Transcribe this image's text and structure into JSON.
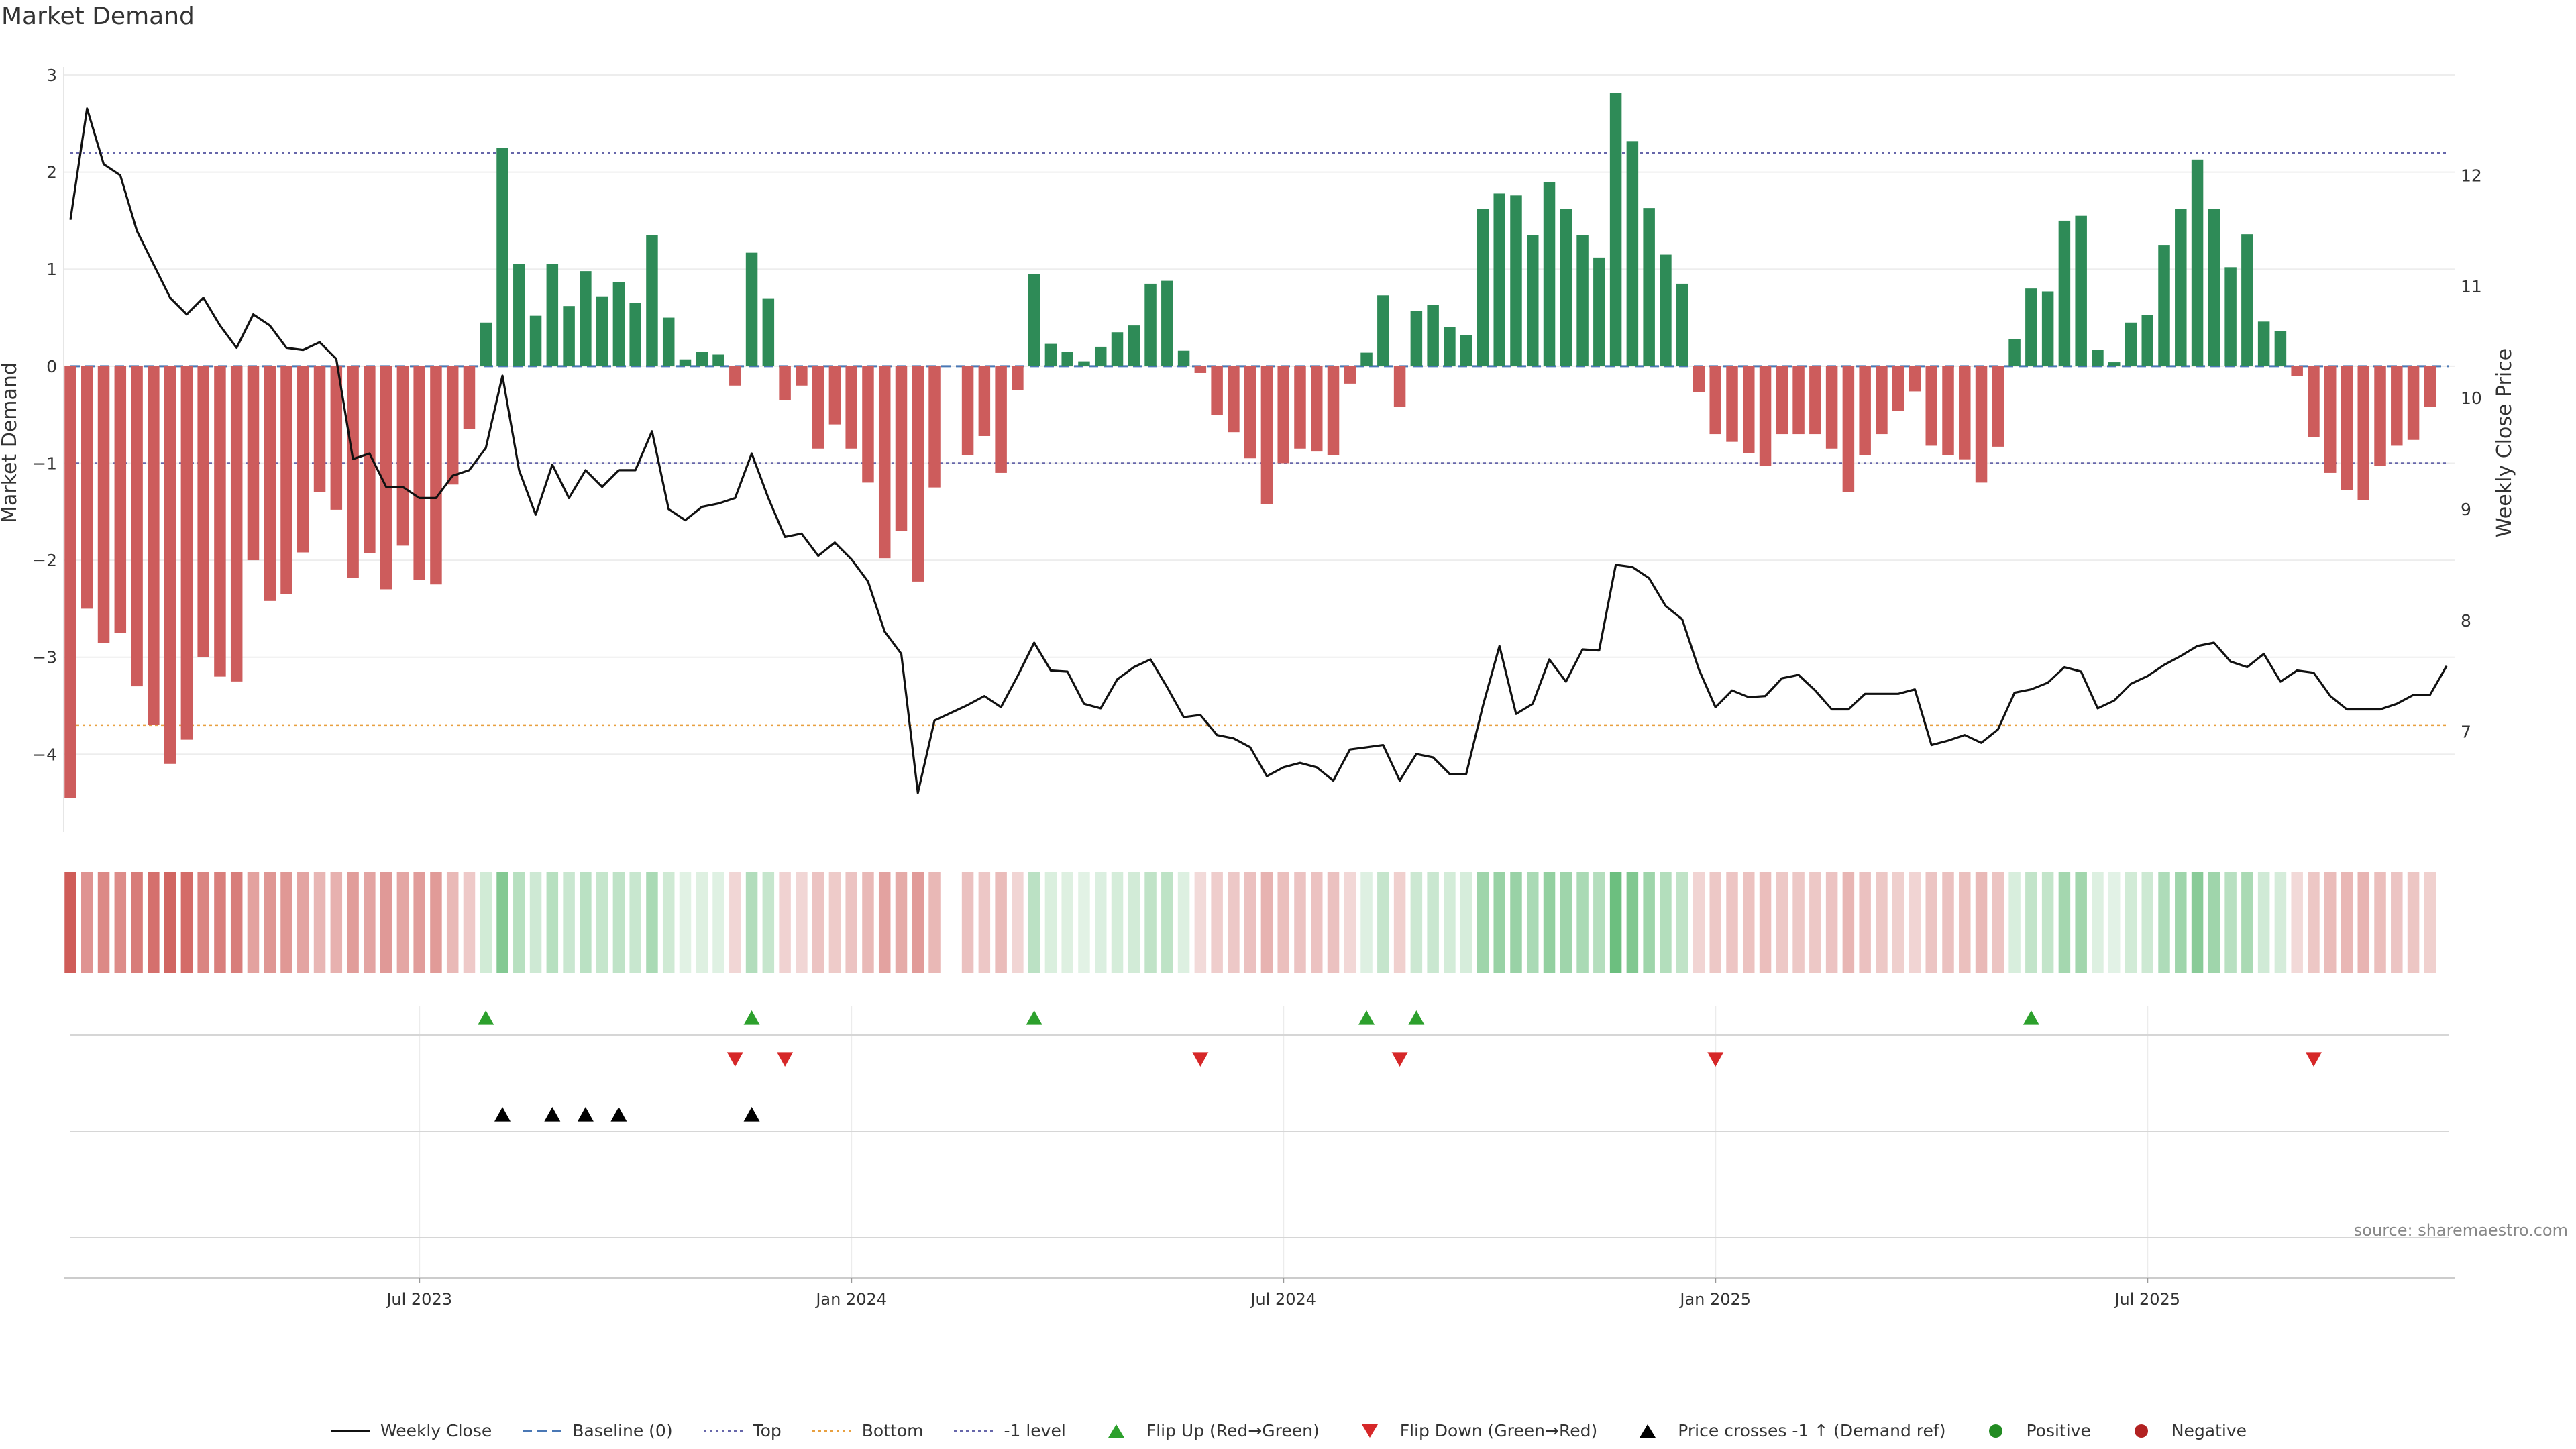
{
  "chart_data": {
    "type": "bar+line",
    "title": "Market Demand",
    "ylabel_left": "Market Demand",
    "ylabel_right": "Weekly Close Price",
    "left_axis": {
      "range": [
        -4.8,
        3.0
      ],
      "ticks": [
        3,
        2,
        1,
        0,
        -1,
        -2,
        -3,
        -4
      ],
      "tick_labels": [
        "3",
        "2",
        "1",
        "0",
        "−1",
        "−2",
        "−3",
        "−4"
      ]
    },
    "right_axis": {
      "range": [
        6.1,
        12.9
      ],
      "ticks": [
        12,
        11,
        10,
        9,
        8,
        7
      ],
      "tick_labels": [
        "12",
        "11",
        "10",
        "9",
        "8",
        "7"
      ]
    },
    "x_ticks": [
      "Jul 2023",
      "Jan 2024",
      "Jul 2024",
      "Jan 2025",
      "Jul 2025"
    ],
    "x_tick_index": [
      21,
      47,
      73,
      99,
      125
    ],
    "reference_lines": {
      "top": 2.2,
      "bottom": -3.7,
      "minus1": -1
    },
    "colors": {
      "positive": "#2e8b57",
      "negative": "#cd5c5c",
      "line": "#111111",
      "top": "#6666aa",
      "bottom": "#e8a040",
      "minus1": "#6666aa",
      "flip_up": "#2ca02c",
      "flip_down": "#d62728",
      "cross": "#000000"
    },
    "demand": [
      -4.45,
      -2.5,
      -2.85,
      -2.75,
      -3.3,
      -3.7,
      -4.1,
      -3.85,
      -3.0,
      -3.2,
      -3.25,
      -2.0,
      -2.42,
      -2.35,
      -1.92,
      -1.3,
      -1.48,
      -2.18,
      -1.93,
      -2.3,
      -1.85,
      -2.2,
      -2.25,
      -1.22,
      -0.65,
      0.45,
      2.25,
      1.05,
      0.52,
      1.05,
      0.62,
      0.98,
      0.72,
      0.87,
      0.65,
      1.35,
      0.5,
      0.07,
      0.15,
      0.12,
      -0.2,
      1.17,
      0.7,
      -0.35,
      -0.2,
      -0.85,
      -0.6,
      -0.85,
      -1.2,
      -1.98,
      -1.7,
      -2.22,
      -1.25,
      0,
      -0.92,
      -0.72,
      -1.1,
      -0.25,
      0.95,
      0.23,
      0.15,
      0.05,
      0.2,
      0.35,
      0.42,
      0.85,
      0.88,
      0.16,
      -0.07,
      -0.5,
      -0.68,
      -0.95,
      -1.42,
      -1.0,
      -0.85,
      -0.88,
      -0.92,
      -0.18,
      0.14,
      0.73,
      -0.42,
      0.57,
      0.63,
      0.4,
      0.32,
      1.62,
      1.78,
      1.76,
      1.35,
      1.9,
      1.62,
      1.35,
      1.12,
      2.82,
      2.32,
      1.63,
      1.15,
      0.85,
      -0.27,
      -0.7,
      -0.78,
      -0.9,
      -1.03,
      -0.7,
      -0.7,
      -0.7,
      -0.85,
      -1.3,
      -0.92,
      -0.7,
      -0.46,
      -0.26,
      -0.82,
      -0.92,
      -0.96,
      -1.2,
      -0.83,
      0.28,
      0.8,
      0.77,
      1.5,
      1.55,
      0.17,
      0.04,
      0.45,
      0.53,
      1.25,
      1.62,
      2.13,
      1.62,
      1.02,
      1.36,
      0.46,
      0.36,
      -0.1,
      -0.73,
      -1.1,
      -1.28,
      -1.38,
      -1.03,
      -0.82,
      -0.76,
      -0.42
    ],
    "close": [
      11.6,
      12.6,
      12.1,
      12.0,
      11.5,
      11.2,
      10.9,
      10.75,
      10.9,
      10.65,
      10.45,
      10.75,
      10.65,
      10.45,
      10.43,
      10.5,
      10.35,
      9.45,
      9.5,
      9.2,
      9.2,
      9.1,
      9.1,
      9.3,
      9.35,
      9.55,
      10.2,
      9.35,
      8.95,
      9.4,
      9.1,
      9.35,
      9.2,
      9.35,
      9.35,
      9.7,
      9.0,
      8.9,
      9.02,
      9.05,
      9.1,
      9.5,
      9.1,
      8.75,
      8.78,
      8.58,
      8.7,
      8.55,
      8.35,
      7.9,
      7.7,
      6.45,
      7.1,
      7.17,
      7.24,
      7.32,
      7.22,
      7.5,
      7.8,
      7.55,
      7.54,
      7.25,
      7.21,
      7.47,
      7.58,
      7.65,
      7.4,
      7.13,
      7.15,
      6.97,
      6.94,
      6.86,
      6.6,
      6.68,
      6.72,
      6.68,
      6.56,
      6.84,
      6.86,
      6.88,
      6.56,
      6.8,
      6.77,
      6.62,
      6.62,
      7.23,
      7.77,
      7.16,
      7.25,
      7.65,
      7.45,
      7.74,
      7.73,
      8.5,
      8.48,
      8.38,
      8.13,
      8.01,
      7.56,
      7.22,
      7.37,
      7.31,
      7.32,
      7.48,
      7.51,
      7.37,
      7.2,
      7.2,
      7.34,
      7.34,
      7.34,
      7.38,
      6.88,
      6.92,
      6.97,
      6.9,
      7.02,
      7.35,
      7.38,
      7.44,
      7.58,
      7.54,
      7.21,
      7.28,
      7.43,
      7.5,
      7.6,
      7.68,
      7.77,
      7.8,
      7.63,
      7.58,
      7.7,
      7.45,
      7.55,
      7.53,
      7.32,
      7.2,
      7.2,
      7.2,
      7.25,
      7.33,
      7.33,
      7.59
    ],
    "flip_up": [
      25,
      41,
      58,
      78,
      81,
      118
    ],
    "flip_down": [
      40,
      43,
      68,
      80,
      99,
      135
    ],
    "price_crosses": [
      26,
      29,
      31,
      33,
      41
    ],
    "legend": [
      {
        "label": "Weekly Close",
        "kind": "line-solid"
      },
      {
        "label": "Baseline (0)",
        "kind": "line-dash"
      },
      {
        "label": "Top",
        "kind": "line-dot-blue"
      },
      {
        "label": "Bottom",
        "kind": "line-dot-orange"
      },
      {
        "label": "-1 level",
        "kind": "line-dot-blue"
      },
      {
        "label": "Flip Up (Red→Green)",
        "kind": "tri-up-green"
      },
      {
        "label": "Flip Down (Green→Red)",
        "kind": "tri-down-red"
      },
      {
        "label": "Price crosses -1 ↑ (Demand ref)",
        "kind": "tri-up-black"
      },
      {
        "label": "Positive",
        "kind": "dot-green"
      },
      {
        "label": "Negative",
        "kind": "dot-red"
      }
    ]
  },
  "source": "source: sharemaestro.com"
}
